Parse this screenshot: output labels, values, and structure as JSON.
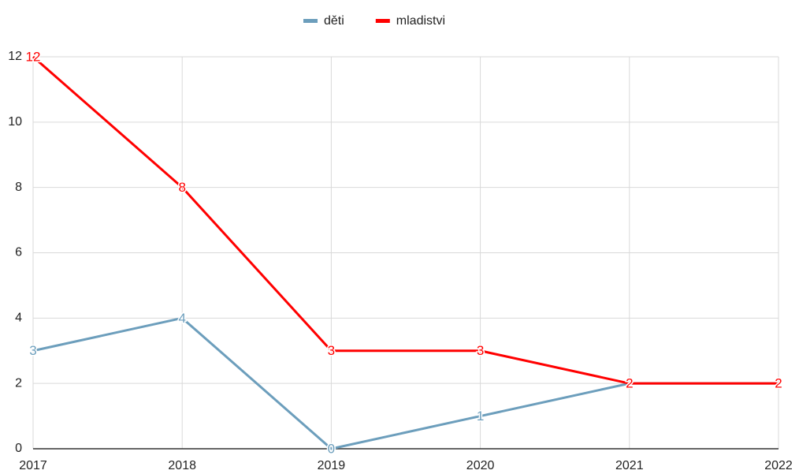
{
  "chart_data": {
    "type": "line",
    "categories": [
      "2017",
      "2018",
      "2019",
      "2020",
      "2021",
      "2022"
    ],
    "series": [
      {
        "name": "děti",
        "color": "#6c9ebc",
        "values": [
          3,
          4,
          0,
          1,
          2,
          2
        ]
      },
      {
        "name": "mladistvi",
        "color": "#ff0000",
        "values": [
          12,
          8,
          3,
          3,
          2,
          2
        ]
      }
    ],
    "ylim": [
      0,
      12
    ],
    "yticks": [
      0,
      2,
      4,
      6,
      8,
      10,
      12
    ],
    "grid": true,
    "legend": "top",
    "data_labels": true
  }
}
